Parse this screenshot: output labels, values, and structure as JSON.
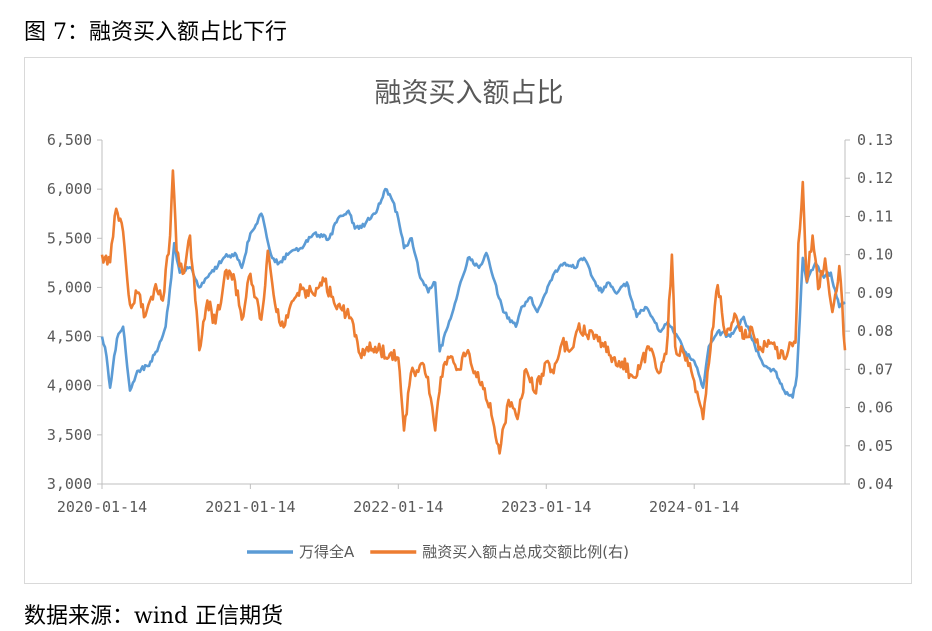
{
  "caption": "图 7：融资买入额占比下行",
  "source": "数据来源：wind  正信期货",
  "chart_data": {
    "type": "line",
    "title": "融资买入额占比",
    "x_ticks": [
      "2020-01-14",
      "2021-01-14",
      "2022-01-14",
      "2023-01-14",
      "2024-01-14"
    ],
    "x_range": [
      "2020-01-14",
      "2025-01-20"
    ],
    "y_left": {
      "min": 3000,
      "max": 6500,
      "step": 500,
      "ticks": [
        "3,000",
        "3,500",
        "4,000",
        "4,500",
        "5,000",
        "5,500",
        "6,000",
        "6,500"
      ]
    },
    "y_right": {
      "min": 0.04,
      "max": 0.13,
      "step": 0.01,
      "ticks": [
        "0.04",
        "0.05",
        "0.06",
        "0.07",
        "0.08",
        "0.09",
        "0.10",
        "0.11",
        "0.12",
        "0.13"
      ]
    },
    "series": [
      {
        "name": "万得全A",
        "axis": "left",
        "color": "#5b9bd5",
        "points": [
          [
            "2020-01-14",
            4500
          ],
          [
            "2020-01-25",
            4300
          ],
          [
            "2020-02-03",
            3980
          ],
          [
            "2020-02-20",
            4480
          ],
          [
            "2020-03-06",
            4600
          ],
          [
            "2020-03-23",
            3950
          ],
          [
            "2020-04-10",
            4150
          ],
          [
            "2020-05-06",
            4200
          ],
          [
            "2020-05-29",
            4350
          ],
          [
            "2020-06-19",
            4600
          ],
          [
            "2020-07-03",
            5100
          ],
          [
            "2020-07-10",
            5450
          ],
          [
            "2020-07-24",
            5150
          ],
          [
            "2020-08-21",
            5200
          ],
          [
            "2020-09-10",
            5000
          ],
          [
            "2020-10-09",
            5150
          ],
          [
            "2020-11-09",
            5300
          ],
          [
            "2020-12-07",
            5350
          ],
          [
            "2020-12-24",
            5200
          ],
          [
            "2021-01-14",
            5550
          ],
          [
            "2021-02-10",
            5750
          ],
          [
            "2021-03-09",
            5300
          ],
          [
            "2021-03-26",
            5250
          ],
          [
            "2021-04-20",
            5350
          ],
          [
            "2021-05-19",
            5400
          ],
          [
            "2021-06-21",
            5550
          ],
          [
            "2021-07-28",
            5500
          ],
          [
            "2021-08-18",
            5700
          ],
          [
            "2021-09-13",
            5780
          ],
          [
            "2021-09-29",
            5600
          ],
          [
            "2021-10-25",
            5650
          ],
          [
            "2021-11-24",
            5800
          ],
          [
            "2021-12-13",
            6000
          ],
          [
            "2021-12-31",
            5880
          ],
          [
            "2022-01-14",
            5700
          ],
          [
            "2022-01-28",
            5400
          ],
          [
            "2022-02-16",
            5500
          ],
          [
            "2022-03-09",
            5100
          ],
          [
            "2022-03-29",
            4950
          ],
          [
            "2022-04-15",
            5050
          ],
          [
            "2022-04-26",
            4350
          ],
          [
            "2022-05-16",
            4600
          ],
          [
            "2022-06-13",
            5000
          ],
          [
            "2022-07-05",
            5300
          ],
          [
            "2022-08-01",
            5200
          ],
          [
            "2022-08-19",
            5350
          ],
          [
            "2022-09-05",
            5100
          ],
          [
            "2022-09-30",
            4750
          ],
          [
            "2022-10-31",
            4600
          ],
          [
            "2022-11-14",
            4800
          ],
          [
            "2022-12-05",
            4900
          ],
          [
            "2022-12-23",
            4750
          ],
          [
            "2023-01-14",
            4950
          ],
          [
            "2023-02-03",
            5150
          ],
          [
            "2023-03-01",
            5250
          ],
          [
            "2023-03-24",
            5200
          ],
          [
            "2023-04-17",
            5300
          ],
          [
            "2023-05-08",
            5100
          ],
          [
            "2023-05-31",
            4950
          ],
          [
            "2023-06-16",
            5050
          ],
          [
            "2023-07-03",
            4950
          ],
          [
            "2023-08-01",
            5050
          ],
          [
            "2023-08-25",
            4700
          ],
          [
            "2023-09-15",
            4800
          ],
          [
            "2023-10-23",
            4550
          ],
          [
            "2023-11-10",
            4650
          ],
          [
            "2023-12-04",
            4500
          ],
          [
            "2023-12-21",
            4350
          ],
          [
            "2024-01-14",
            4250
          ],
          [
            "2024-02-05",
            3980
          ],
          [
            "2024-02-19",
            4400
          ],
          [
            "2024-03-12",
            4550
          ],
          [
            "2024-04-12",
            4500
          ],
          [
            "2024-05-15",
            4700
          ],
          [
            "2024-06-12",
            4400
          ],
          [
            "2024-07-05",
            4200
          ],
          [
            "2024-07-31",
            4150
          ],
          [
            "2024-08-23",
            3950
          ],
          [
            "2024-09-13",
            3880
          ],
          [
            "2024-09-23",
            4100
          ],
          [
            "2024-10-08",
            5300
          ],
          [
            "2024-10-18",
            5050
          ],
          [
            "2024-11-08",
            5250
          ],
          [
            "2024-11-29",
            5100
          ],
          [
            "2024-12-16",
            5150
          ],
          [
            "2025-01-06",
            4800
          ],
          [
            "2025-01-20",
            4850
          ]
        ]
      },
      {
        "name": "融资买入额占总成交额比例(右)",
        "axis": "right",
        "color": "#ed7d31",
        "points": [
          [
            "2020-01-14",
            0.1
          ],
          [
            "2020-02-03",
            0.098
          ],
          [
            "2020-02-18",
            0.112
          ],
          [
            "2020-03-06",
            0.106
          ],
          [
            "2020-03-23",
            0.087
          ],
          [
            "2020-04-10",
            0.09
          ],
          [
            "2020-04-30",
            0.084
          ],
          [
            "2020-05-22",
            0.091
          ],
          [
            "2020-06-12",
            0.088
          ],
          [
            "2020-06-30",
            0.105
          ],
          [
            "2020-07-07",
            0.122
          ],
          [
            "2020-07-16",
            0.101
          ],
          [
            "2020-07-31",
            0.095
          ],
          [
            "2020-08-18",
            0.105
          ],
          [
            "2020-09-10",
            0.075
          ],
          [
            "2020-09-30",
            0.088
          ],
          [
            "2020-10-20",
            0.082
          ],
          [
            "2020-11-16",
            0.096
          ],
          [
            "2020-12-07",
            0.093
          ],
          [
            "2020-12-24",
            0.083
          ],
          [
            "2021-01-14",
            0.095
          ],
          [
            "2021-02-10",
            0.083
          ],
          [
            "2021-02-26",
            0.101
          ],
          [
            "2021-03-16",
            0.087
          ],
          [
            "2021-04-06",
            0.081
          ],
          [
            "2021-04-30",
            0.088
          ],
          [
            "2021-05-21",
            0.091
          ],
          [
            "2021-06-16",
            0.09
          ],
          [
            "2021-07-12",
            0.094
          ],
          [
            "2021-08-02",
            0.089
          ],
          [
            "2021-08-25",
            0.086
          ],
          [
            "2021-09-22",
            0.083
          ],
          [
            "2021-10-15",
            0.073
          ],
          [
            "2021-11-05",
            0.077
          ],
          [
            "2021-12-01",
            0.075
          ],
          [
            "2021-12-24",
            0.074
          ],
          [
            "2022-01-14",
            0.073
          ],
          [
            "2022-01-28",
            0.054
          ],
          [
            "2022-02-14",
            0.069
          ],
          [
            "2022-03-08",
            0.071
          ],
          [
            "2022-03-28",
            0.068
          ],
          [
            "2022-04-15",
            0.054
          ],
          [
            "2022-04-29",
            0.068
          ],
          [
            "2022-05-20",
            0.073
          ],
          [
            "2022-06-10",
            0.07
          ],
          [
            "2022-07-05",
            0.075
          ],
          [
            "2022-07-26",
            0.068
          ],
          [
            "2022-08-15",
            0.065
          ],
          [
            "2022-09-01",
            0.058
          ],
          [
            "2022-09-21",
            0.048
          ],
          [
            "2022-10-13",
            0.062
          ],
          [
            "2022-11-04",
            0.057
          ],
          [
            "2022-11-25",
            0.07
          ],
          [
            "2022-12-16",
            0.064
          ],
          [
            "2023-01-14",
            0.072
          ],
          [
            "2023-02-01",
            0.069
          ],
          [
            "2023-02-22",
            0.077
          ],
          [
            "2023-03-15",
            0.075
          ],
          [
            "2023-04-05",
            0.082
          ],
          [
            "2023-04-24",
            0.079
          ],
          [
            "2023-05-12",
            0.078
          ],
          [
            "2023-06-05",
            0.076
          ],
          [
            "2023-06-28",
            0.073
          ],
          [
            "2023-07-20",
            0.072
          ],
          [
            "2023-08-16",
            0.068
          ],
          [
            "2023-09-08",
            0.073
          ],
          [
            "2023-09-27",
            0.075
          ],
          [
            "2023-10-19",
            0.069
          ],
          [
            "2023-11-06",
            0.074
          ],
          [
            "2023-11-20",
            0.1
          ],
          [
            "2023-11-28",
            0.076
          ],
          [
            "2023-12-20",
            0.074
          ],
          [
            "2024-01-14",
            0.067
          ],
          [
            "2024-02-05",
            0.057
          ],
          [
            "2024-02-23",
            0.075
          ],
          [
            "2024-03-12",
            0.092
          ],
          [
            "2024-04-02",
            0.079
          ],
          [
            "2024-04-26",
            0.084
          ],
          [
            "2024-05-16",
            0.078
          ],
          [
            "2024-06-04",
            0.081
          ],
          [
            "2024-06-28",
            0.075
          ],
          [
            "2024-07-22",
            0.077
          ],
          [
            "2024-08-12",
            0.073
          ],
          [
            "2024-09-02",
            0.075
          ],
          [
            "2024-09-20",
            0.077
          ],
          [
            "2024-09-27",
            0.103
          ],
          [
            "2024-10-08",
            0.119
          ],
          [
            "2024-10-18",
            0.093
          ],
          [
            "2024-11-01",
            0.105
          ],
          [
            "2024-11-15",
            0.091
          ],
          [
            "2024-12-02",
            0.099
          ],
          [
            "2024-12-20",
            0.085
          ],
          [
            "2025-01-06",
            0.097
          ],
          [
            "2025-01-20",
            0.075
          ]
        ]
      }
    ],
    "legend": {
      "position": "bottom"
    }
  }
}
